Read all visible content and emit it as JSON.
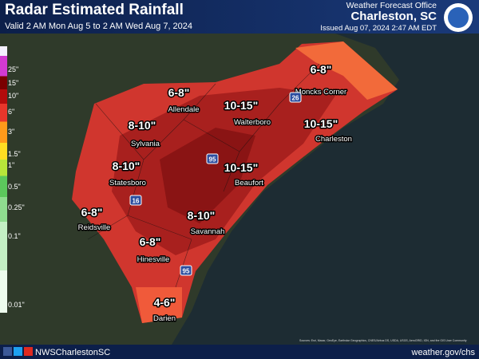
{
  "header": {
    "title": "Radar Estimated Rainfall",
    "subtitle": "Valid 2 AM Mon Aug 5 to 2 AM Wed Aug 7, 2024",
    "office_label": "Weather Forecast Office",
    "office": "Charleston, SC",
    "issued": "Issued Aug 07, 2024 2:47 AM EDT"
  },
  "legend": [
    {
      "label": "25\"",
      "color": "#d23ad2"
    },
    {
      "label": "15\"",
      "color": "#7a0000"
    },
    {
      "label": "10\"",
      "color": "#b40c0c"
    },
    {
      "label": "6\"",
      "color": "#e8362b"
    },
    {
      "label": "3\"",
      "color": "#ff9a1a"
    },
    {
      "label": "1.5\"",
      "color": "#ffdd22"
    },
    {
      "label": "1\"",
      "color": "#b8e63a"
    },
    {
      "label": "0.5\"",
      "color": "#5cc85c"
    },
    {
      "label": "0.25\"",
      "color": "#8fdc8f"
    },
    {
      "label": "0.1\"",
      "color": "#c4efc4"
    },
    {
      "label": "0.01\"",
      "color": "#eefcee"
    }
  ],
  "annotations": [
    {
      "amount": "6-8\"",
      "place": "Moncks Corner"
    },
    {
      "amount": "6-8\"",
      "place": "Allendale"
    },
    {
      "amount": "10-15\"",
      "place": "Walterboro"
    },
    {
      "amount": "10-15\"",
      "place": "Charleston"
    },
    {
      "amount": "8-10\"",
      "place": "Sylvania"
    },
    {
      "amount": "8-10\"",
      "place": "Statesboro"
    },
    {
      "amount": "10-15\"",
      "place": "Beaufort"
    },
    {
      "amount": "6-8\"",
      "place": "Reidsville"
    },
    {
      "amount": "8-10\"",
      "place": "Savannah"
    },
    {
      "amount": "6-8\"",
      "place": "Hinesville"
    },
    {
      "amount": "4-6\"",
      "place": "Darien"
    }
  ],
  "highways": [
    "26",
    "95",
    "16",
    "95"
  ],
  "source": "Sources: Esri, Maxar, GeoEye, Earthstar Geographics, CNES/Airbus DS, USDA, USGS, AeroGRID, IGN, and the GIS User Community",
  "footer": {
    "handle": "NWSCharlestonSC",
    "url": "weather.gov/chs"
  }
}
